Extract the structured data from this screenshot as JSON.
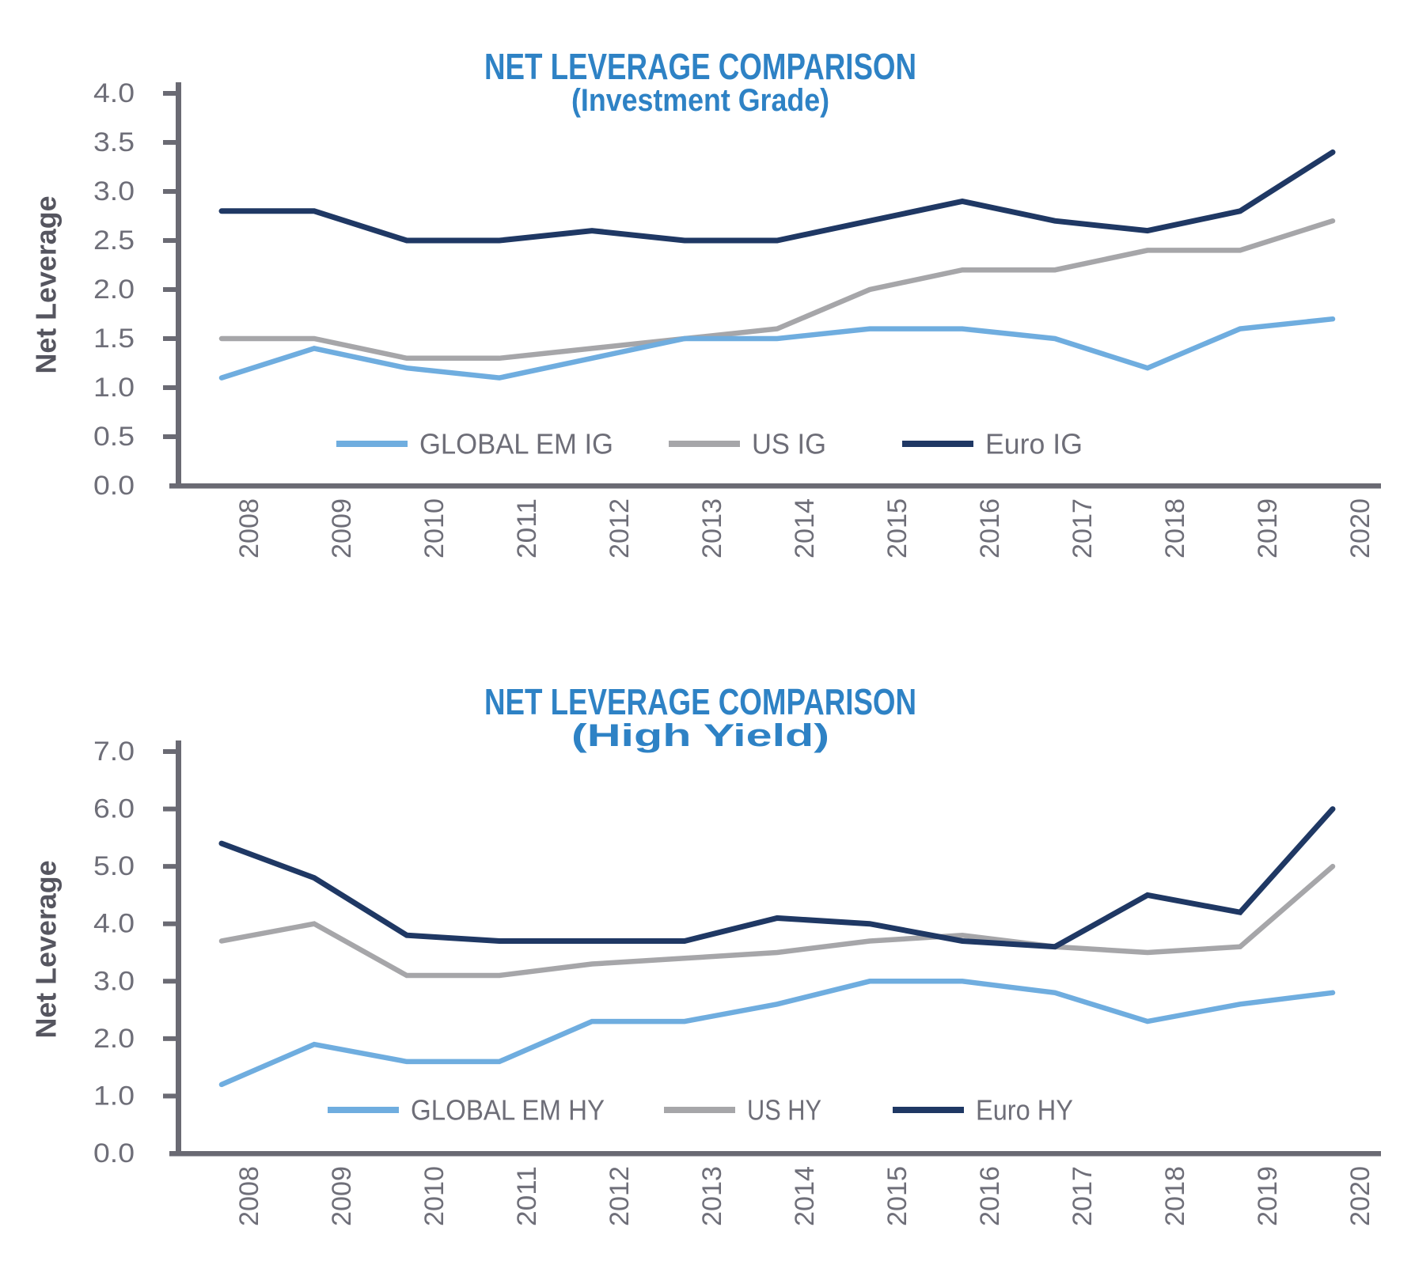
{
  "page": {
    "background": "#ffffff"
  },
  "colors": {
    "title_blue": "#2E82C5",
    "axis_line": "#6A6A73",
    "tick_text": "#6E6E78",
    "axis_title_text": "#55555F",
    "legend_text": "#6E6E78",
    "global_em": "#6FADDF",
    "us": "#A6A6A9",
    "euro": "#1F3864"
  },
  "chart_data": [
    {
      "type": "line",
      "title": "NET LEVERAGE COMPARISON",
      "subtitle": "(Investment Grade)",
      "xlabel": "",
      "ylabel": "Net Leverage",
      "ylim": [
        0.0,
        4.0
      ],
      "ytick_step": 0.5,
      "grid": false,
      "legend_position": "inside-bottom",
      "categories": [
        "2008",
        "2009",
        "2010",
        "2011",
        "2012",
        "2013",
        "2014",
        "2015",
        "2016",
        "2017",
        "2018",
        "2019",
        "2020"
      ],
      "series": [
        {
          "name": "GLOBAL EM IG",
          "color": "#6FADDF",
          "values": [
            1.1,
            1.4,
            1.2,
            1.1,
            1.3,
            1.5,
            1.5,
            1.6,
            1.6,
            1.5,
            1.2,
            1.6,
            1.7
          ]
        },
        {
          "name": "US IG",
          "color": "#A6A6A9",
          "values": [
            1.5,
            1.5,
            1.3,
            1.3,
            1.4,
            1.5,
            1.6,
            2.0,
            2.2,
            2.2,
            2.4,
            2.4,
            2.7
          ]
        },
        {
          "name": "Euro IG",
          "color": "#1F3864",
          "values": [
            2.8,
            2.8,
            2.5,
            2.5,
            2.6,
            2.5,
            2.5,
            2.7,
            2.9,
            2.7,
            2.6,
            2.8,
            3.4
          ]
        }
      ]
    },
    {
      "type": "line",
      "title": "NET LEVERAGE COMPARISON",
      "subtitle": "(High Yield)",
      "xlabel": "",
      "ylabel": "Net Leverage",
      "ylim": [
        0.0,
        7.0
      ],
      "ytick_step": 1.0,
      "grid": false,
      "legend_position": "inside-bottom",
      "categories": [
        "2008",
        "2009",
        "2010",
        "2011",
        "2012",
        "2013",
        "2014",
        "2015",
        "2016",
        "2017",
        "2018",
        "2019",
        "2020"
      ],
      "series": [
        {
          "name": "GLOBAL EM HY",
          "color": "#6FADDF",
          "values": [
            1.2,
            1.9,
            1.6,
            1.6,
            2.3,
            2.3,
            2.6,
            3.0,
            3.0,
            2.8,
            2.3,
            2.6,
            2.8
          ]
        },
        {
          "name": "US HY",
          "color": "#A6A6A9",
          "values": [
            3.7,
            4.0,
            3.1,
            3.1,
            3.3,
            3.4,
            3.5,
            3.7,
            3.8,
            3.6,
            3.5,
            3.6,
            5.0
          ]
        },
        {
          "name": "Euro HY",
          "color": "#1F3864",
          "values": [
            5.4,
            4.8,
            3.8,
            3.7,
            3.7,
            3.7,
            4.1,
            4.0,
            3.7,
            3.6,
            4.5,
            4.2,
            6.0
          ]
        }
      ]
    }
  ]
}
